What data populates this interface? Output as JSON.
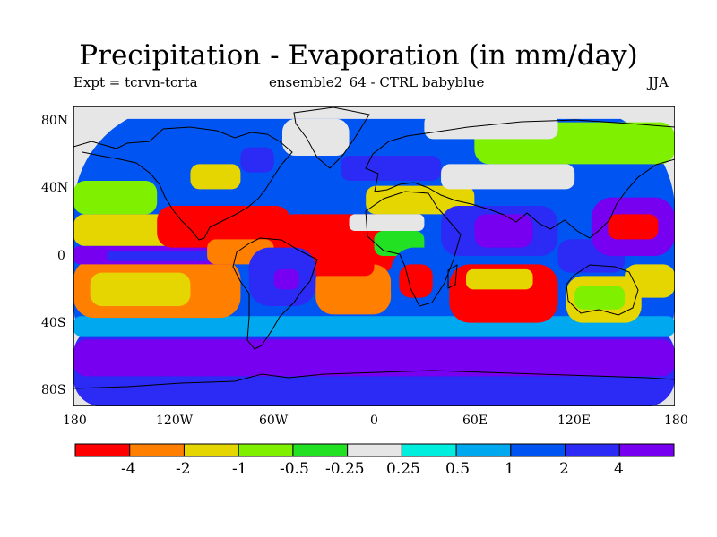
{
  "chart_data": {
    "type": "heatmap",
    "title": "Precipitation - Evaporation (in mm/day)",
    "left_label": "Expt = tcrvn-tcrta",
    "center_label": "ensemble2_64 - CTRL babyblue",
    "right_label": "JJA",
    "x_ticks": [
      "180",
      "120W",
      "60W",
      "0",
      "60E",
      "120E",
      "180"
    ],
    "y_ticks": [
      "80N",
      "40N",
      "0",
      "40S",
      "80S"
    ],
    "xlim": [
      -180,
      180
    ],
    "ylim": [
      -90,
      90
    ],
    "colorbar": {
      "levels": [
        "-4",
        "-2",
        "-1",
        "-0.5",
        "-0.25",
        "0.25",
        "0.5",
        "1",
        "2",
        "4"
      ],
      "colors": [
        "#ff0000",
        "#ff7f00",
        "#e5d500",
        "#7ff000",
        "#22e022",
        "#e6e6e6",
        "#00eedd",
        "#00a8f0",
        "#0055f2",
        "#2b2bf5",
        "#7700f0"
      ]
    },
    "regions": [
      {
        "lon": [
          -180,
          180
        ],
        "lat": [
          -90,
          90
        ],
        "class": 8
      },
      {
        "lon": [
          -180,
          180
        ],
        "lat": [
          -90,
          -42
        ],
        "class": 9
      },
      {
        "lon": [
          -180,
          180
        ],
        "lat": [
          -72,
          -50
        ],
        "class": 10
      },
      {
        "lon": [
          -180,
          180
        ],
        "lat": [
          -48,
          -36
        ],
        "class": 7
      },
      {
        "lon": [
          -180,
          -80
        ],
        "lat": [
          -37,
          -2
        ],
        "class": 1
      },
      {
        "lon": [
          -170,
          -110
        ],
        "lat": [
          -30,
          -10
        ],
        "class": 2
      },
      {
        "lon": [
          -180,
          -80
        ],
        "lat": [
          -5,
          6
        ],
        "class": 10
      },
      {
        "lon": [
          -160,
          -90
        ],
        "lat": [
          -3,
          3
        ],
        "class": 9
      },
      {
        "lon": [
          -180,
          -100
        ],
        "lat": [
          6,
          25
        ],
        "class": 2
      },
      {
        "lon": [
          -180,
          -130
        ],
        "lat": [
          25,
          45
        ],
        "class": 3
      },
      {
        "lon": [
          -130,
          -50
        ],
        "lat": [
          5,
          30
        ],
        "class": 0
      },
      {
        "lon": [
          -100,
          -60
        ],
        "lat": [
          -5,
          10
        ],
        "class": 1
      },
      {
        "lon": [
          -60,
          15
        ],
        "lat": [
          -10,
          25
        ],
        "class": 0
      },
      {
        "lon": [
          -35,
          10
        ],
        "lat": [
          -35,
          -5
        ],
        "class": 1
      },
      {
        "lon": [
          -40,
          0
        ],
        "lat": [
          -12,
          3
        ],
        "class": 0
      },
      {
        "lon": [
          -75,
          -35
        ],
        "lat": [
          -30,
          5
        ],
        "class": 9
      },
      {
        "lon": [
          -60,
          -45
        ],
        "lat": [
          -20,
          -8
        ],
        "class": 10
      },
      {
        "lon": [
          -165,
          -55
        ],
        "lat": [
          45,
          72
        ],
        "class": 8
      },
      {
        "lon": [
          -110,
          -80
        ],
        "lat": [
          40,
          55
        ],
        "class": 2
      },
      {
        "lon": [
          -80,
          -60
        ],
        "lat": [
          50,
          65
        ],
        "class": 9
      },
      {
        "lon": [
          -55,
          -15
        ],
        "lat": [
          60,
          82
        ],
        "class": 5
      },
      {
        "lon": [
          -45,
          -10
        ],
        "lat": [
          40,
          60
        ],
        "class": 8
      },
      {
        "lon": [
          -20,
          40
        ],
        "lat": [
          45,
          60
        ],
        "class": 9
      },
      {
        "lon": [
          -5,
          60
        ],
        "lat": [
          25,
          42
        ],
        "class": 2
      },
      {
        "lon": [
          -15,
          30
        ],
        "lat": [
          15,
          25
        ],
        "class": 5
      },
      {
        "lon": [
          0,
          30
        ],
        "lat": [
          0,
          15
        ],
        "class": 4
      },
      {
        "lon": [
          10,
          50
        ],
        "lat": [
          -35,
          5
        ],
        "class": 8
      },
      {
        "lon": [
          15,
          35
        ],
        "lat": [
          -25,
          -5
        ],
        "class": 0
      },
      {
        "lon": [
          40,
          110
        ],
        "lat": [
          0,
          30
        ],
        "class": 9
      },
      {
        "lon": [
          60,
          95
        ],
        "lat": [
          5,
          25
        ],
        "class": 10
      },
      {
        "lon": [
          45,
          110
        ],
        "lat": [
          -40,
          -5
        ],
        "class": 0
      },
      {
        "lon": [
          55,
          95
        ],
        "lat": [
          -20,
          -8
        ],
        "class": 2
      },
      {
        "lon": [
          115,
          160
        ],
        "lat": [
          -40,
          -12
        ],
        "class": 2
      },
      {
        "lon": [
          120,
          150
        ],
        "lat": [
          -32,
          -18
        ],
        "class": 3
      },
      {
        "lon": [
          110,
          150
        ],
        "lat": [
          -10,
          10
        ],
        "class": 9
      },
      {
        "lon": [
          150,
          180
        ],
        "lat": [
          -25,
          -5
        ],
        "class": 2
      },
      {
        "lon": [
          130,
          180
        ],
        "lat": [
          0,
          35
        ],
        "class": 10
      },
      {
        "lon": [
          140,
          170
        ],
        "lat": [
          10,
          25
        ],
        "class": 0
      },
      {
        "lon": [
          60,
          180
        ],
        "lat": [
          55,
          80
        ],
        "class": 3
      },
      {
        "lon": [
          30,
          110
        ],
        "lat": [
          70,
          85
        ],
        "class": 5
      },
      {
        "lon": [
          40,
          120
        ],
        "lat": [
          40,
          55
        ],
        "class": 5
      },
      {
        "lon": [
          -180,
          180
        ],
        "lat": [
          82,
          90
        ],
        "class": 5
      }
    ]
  }
}
